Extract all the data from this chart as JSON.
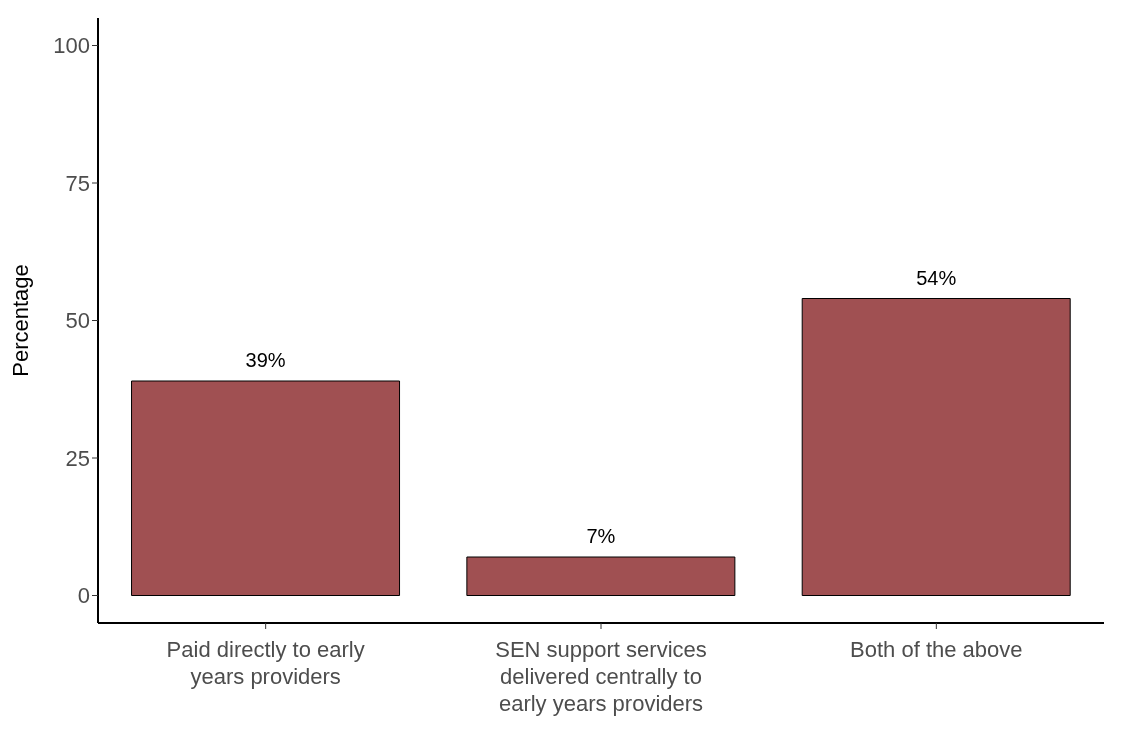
{
  "chart_data": {
    "type": "bar",
    "ylabel": "Percentage",
    "categories": [
      "Paid directly to early years providers",
      "SEN support services delivered centrally to early years providers",
      "Both of the above"
    ],
    "values": [
      39,
      7,
      54
    ],
    "value_labels": [
      "39%",
      "7%",
      "54%"
    ],
    "color": "#a05052",
    "ylim": [
      -5,
      105
    ],
    "yticks": [
      0,
      25,
      50,
      75,
      100
    ],
    "grid": false,
    "legend": false
  }
}
